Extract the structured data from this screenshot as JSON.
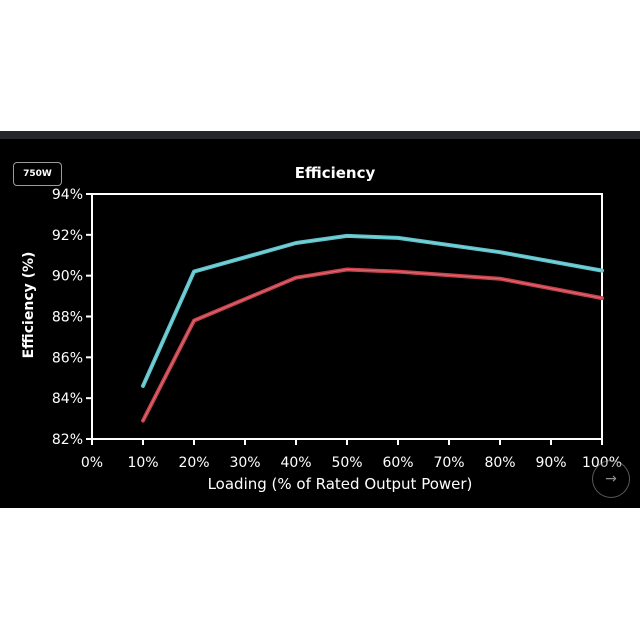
{
  "badge": {
    "label": "750W"
  },
  "chart_data": {
    "type": "line",
    "title": "Efficiency",
    "xlabel": "Loading (% of Rated Output Power)",
    "ylabel": "Efficiency (%)",
    "x": [
      10,
      20,
      40,
      50,
      60,
      80,
      100
    ],
    "xlim": [
      0,
      100
    ],
    "ylim": [
      82,
      94
    ],
    "x_ticks": [
      0,
      10,
      20,
      30,
      40,
      50,
      60,
      70,
      80,
      90,
      100
    ],
    "x_tick_labels": [
      "0%",
      "10%",
      "20%",
      "30%",
      "40%",
      "50%",
      "60%",
      "70%",
      "80%",
      "90%",
      "100%"
    ],
    "y_ticks": [
      82,
      84,
      86,
      88,
      90,
      92,
      94
    ],
    "y_tick_labels": [
      "82%",
      "84%",
      "86%",
      "88%",
      "90%",
      "92%",
      "94%"
    ],
    "grid": false,
    "legend": "none",
    "series": [
      {
        "color": "#5ec4cc",
        "values": [
          84.6,
          90.2,
          91.6,
          91.95,
          91.85,
          91.15,
          90.25
        ]
      },
      {
        "color": "#c8414b",
        "values": [
          82.9,
          87.8,
          89.9,
          90.3,
          90.2,
          89.85,
          88.9
        ]
      }
    ]
  },
  "controls": {
    "next_icon": "arrow-right-icon",
    "next_glyph": "→"
  }
}
